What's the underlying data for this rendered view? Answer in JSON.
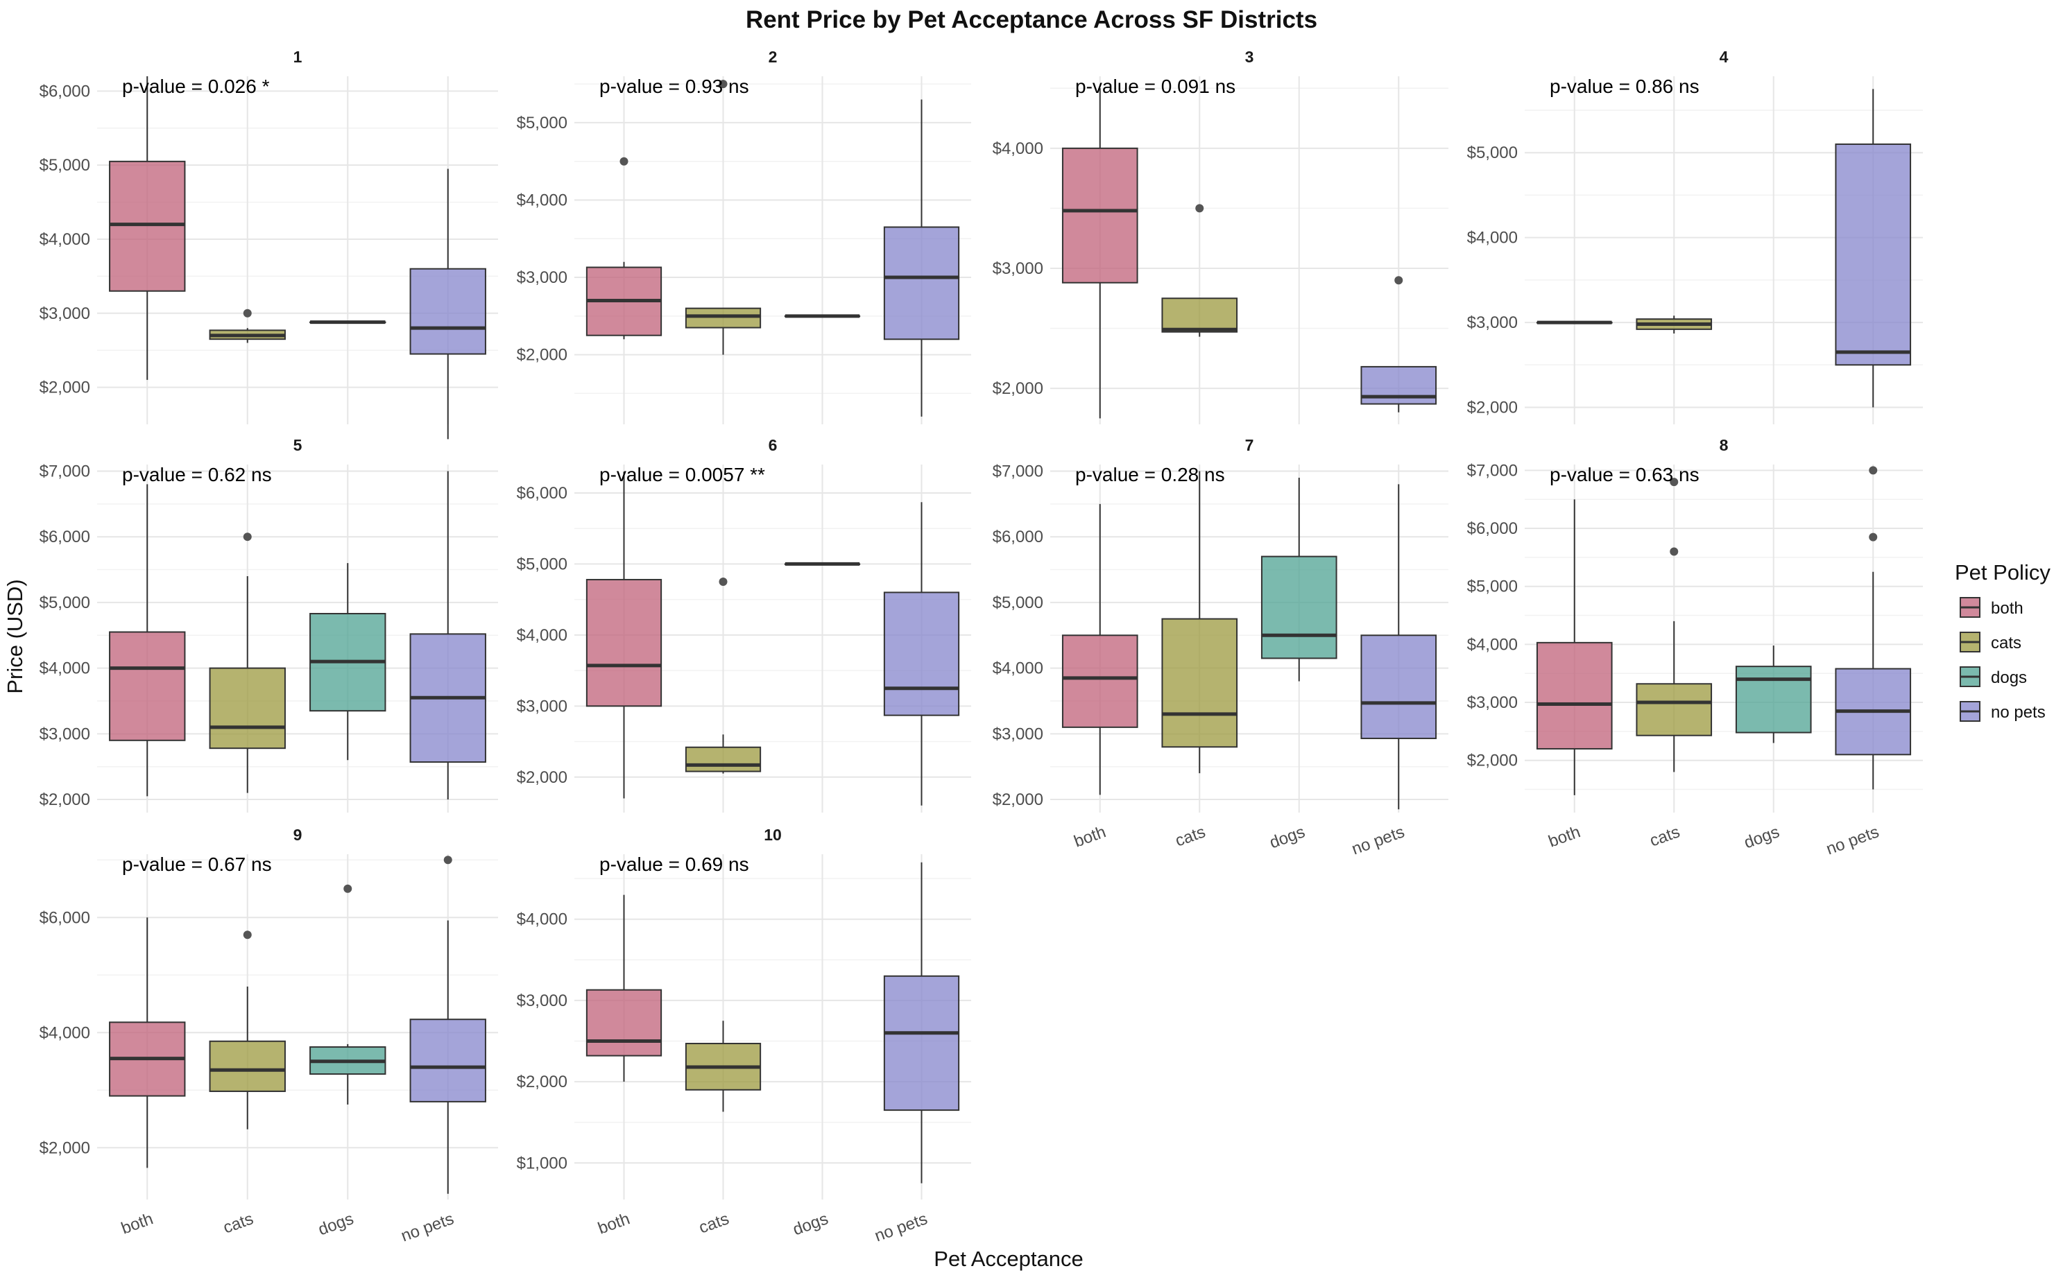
{
  "chart_data": {
    "type": "boxplot",
    "title": "Rent Price by Pet Acceptance Across SF Districts",
    "xlabel": "Pet Acceptance",
    "ylabel": "Price (USD)",
    "categories": [
      "both",
      "cats",
      "dogs",
      "no pets"
    ],
    "legend": {
      "title": "Pet Policy",
      "placement": "right",
      "items": [
        {
          "label": "both",
          "color": "#C0617A"
        },
        {
          "label": "cats",
          "color": "#9C9A3F"
        },
        {
          "label": "dogs",
          "color": "#4FA393"
        },
        {
          "label": "no pets",
          "color": "#8585CC"
        }
      ]
    },
    "grid": true,
    "panels": [
      {
        "label": "1",
        "pvalue": "p-value = 0.026 *",
        "ylim": [
          1500,
          6200
        ],
        "yticks": [
          2000,
          3000,
          4000,
          5000,
          6000
        ],
        "ytick_labels": [
          "$2,000",
          "$3,000",
          "$4,000",
          "$5,000",
          "$6,000"
        ],
        "show_xticks": false,
        "boxes": [
          {
            "category": "both",
            "min": 2100,
            "q1": 3300,
            "median": 4200,
            "q3": 5050,
            "max": 6200,
            "outliers": []
          },
          {
            "category": "cats",
            "min": 2600,
            "q1": 2650,
            "median": 2700,
            "q3": 2770,
            "max": 2800,
            "outliers": [
              3000
            ]
          },
          {
            "category": "dogs",
            "min": 2880,
            "q1": 2880,
            "median": 2880,
            "q3": 2880,
            "max": 2880,
            "outliers": []
          },
          {
            "category": "no pets",
            "min": 1300,
            "q1": 2450,
            "median": 2800,
            "q3": 3600,
            "max": 4950,
            "outliers": []
          }
        ]
      },
      {
        "label": "2",
        "pvalue": "p-value = 0.93 ns",
        "ylim": [
          1100,
          5600
        ],
        "yticks": [
          2000,
          3000,
          4000,
          5000
        ],
        "ytick_labels": [
          "$2,000",
          "$3,000",
          "$4,000",
          "$5,000"
        ],
        "show_xticks": false,
        "boxes": [
          {
            "category": "both",
            "min": 2200,
            "q1": 2250,
            "median": 2700,
            "q3": 3130,
            "max": 3200,
            "outliers": [
              4500
            ]
          },
          {
            "category": "cats",
            "min": 2000,
            "q1": 2350,
            "median": 2500,
            "q3": 2600,
            "max": 2600,
            "outliers": [
              5500
            ]
          },
          {
            "category": "dogs",
            "min": 2500,
            "q1": 2500,
            "median": 2500,
            "q3": 2500,
            "max": 2500,
            "outliers": []
          },
          {
            "category": "no pets",
            "min": 1200,
            "q1": 2200,
            "median": 3000,
            "q3": 3650,
            "max": 5300,
            "outliers": []
          }
        ]
      },
      {
        "label": "3",
        "pvalue": "p-value = 0.091 ns",
        "ylim": [
          1700,
          4600
        ],
        "yticks": [
          2000,
          3000,
          4000
        ],
        "ytick_labels": [
          "$2,000",
          "$3,000",
          "$4,000"
        ],
        "show_xticks": false,
        "boxes": [
          {
            "category": "both",
            "min": 1750,
            "q1": 2880,
            "median": 3480,
            "q3": 4000,
            "max": 4500,
            "outliers": []
          },
          {
            "category": "cats",
            "min": 2430,
            "q1": 2470,
            "median": 2490,
            "q3": 2750,
            "max": 2750,
            "outliers": [
              3500
            ]
          },
          {
            "category": "dogs",
            "min": null,
            "q1": null,
            "median": null,
            "q3": null,
            "max": null,
            "outliers": []
          },
          {
            "category": "no pets",
            "min": 1800,
            "q1": 1870,
            "median": 1930,
            "q3": 2180,
            "max": 2180,
            "outliers": [
              2900
            ]
          }
        ]
      },
      {
        "label": "4",
        "pvalue": "p-value = 0.86 ns",
        "ylim": [
          1800,
          5900
        ],
        "yticks": [
          2000,
          3000,
          4000,
          5000
        ],
        "ytick_labels": [
          "$2,000",
          "$3,000",
          "$4,000",
          "$5,000"
        ],
        "show_xticks": false,
        "boxes": [
          {
            "category": "both",
            "min": 3000,
            "q1": 3000,
            "median": 3000,
            "q3": 3000,
            "max": 3000,
            "outliers": []
          },
          {
            "category": "cats",
            "min": 2870,
            "q1": 2920,
            "median": 2980,
            "q3": 3040,
            "max": 3080,
            "outliers": []
          },
          {
            "category": "dogs",
            "min": null,
            "q1": null,
            "median": null,
            "q3": null,
            "max": null,
            "outliers": []
          },
          {
            "category": "no pets",
            "min": 2000,
            "q1": 2500,
            "median": 2650,
            "q3": 5100,
            "max": 5750,
            "outliers": []
          }
        ]
      },
      {
        "label": "5",
        "pvalue": "p-value = 0.62 ns",
        "ylim": [
          1800,
          7100
        ],
        "yticks": [
          2000,
          3000,
          4000,
          5000,
          6000,
          7000
        ],
        "ytick_labels": [
          "$2,000",
          "$3,000",
          "$4,000",
          "$5,000",
          "$6,000",
          "$7,000"
        ],
        "show_xticks": false,
        "boxes": [
          {
            "category": "both",
            "min": 2050,
            "q1": 2900,
            "median": 4000,
            "q3": 4550,
            "max": 6800,
            "outliers": []
          },
          {
            "category": "cats",
            "min": 2100,
            "q1": 2780,
            "median": 3100,
            "q3": 4000,
            "max": 5400,
            "outliers": [
              6000
            ]
          },
          {
            "category": "dogs",
            "min": 2600,
            "q1": 3350,
            "median": 4100,
            "q3": 4830,
            "max": 5600,
            "outliers": []
          },
          {
            "category": "no pets",
            "min": 2000,
            "q1": 2570,
            "median": 3550,
            "q3": 4520,
            "max": 7000,
            "outliers": []
          }
        ]
      },
      {
        "label": "6",
        "pvalue": "p-value = 0.0057 **",
        "ylim": [
          1500,
          6400
        ],
        "yticks": [
          2000,
          3000,
          4000,
          5000,
          6000
        ],
        "ytick_labels": [
          "$2,000",
          "$3,000",
          "$4,000",
          "$5,000",
          "$6,000"
        ],
        "show_xticks": false,
        "boxes": [
          {
            "category": "both",
            "min": 1700,
            "q1": 3000,
            "median": 3570,
            "q3": 4780,
            "max": 6300,
            "outliers": []
          },
          {
            "category": "cats",
            "min": 2050,
            "q1": 2080,
            "median": 2170,
            "q3": 2420,
            "max": 2600,
            "outliers": [
              4750
            ]
          },
          {
            "category": "dogs",
            "min": 5000,
            "q1": 5000,
            "median": 5000,
            "q3": 5000,
            "max": 5000,
            "outliers": []
          },
          {
            "category": "no pets",
            "min": 1600,
            "q1": 2870,
            "median": 3250,
            "q3": 4600,
            "max": 5870,
            "outliers": []
          }
        ]
      },
      {
        "label": "7",
        "pvalue": "p-value = 0.28 ns",
        "ylim": [
          1800,
          7100
        ],
        "yticks": [
          2000,
          3000,
          4000,
          5000,
          6000,
          7000
        ],
        "ytick_labels": [
          "$2,000",
          "$3,000",
          "$4,000",
          "$5,000",
          "$6,000",
          "$7,000"
        ],
        "show_xticks": true,
        "boxes": [
          {
            "category": "both",
            "min": 2070,
            "q1": 3100,
            "median": 3850,
            "q3": 4500,
            "max": 6500,
            "outliers": []
          },
          {
            "category": "cats",
            "min": 2400,
            "q1": 2800,
            "median": 3300,
            "q3": 4750,
            "max": 7000,
            "outliers": []
          },
          {
            "category": "dogs",
            "min": 3800,
            "q1": 4150,
            "median": 4500,
            "q3": 5700,
            "max": 6900,
            "outliers": []
          },
          {
            "category": "no pets",
            "min": 1850,
            "q1": 2930,
            "median": 3470,
            "q3": 4500,
            "max": 6800,
            "outliers": []
          }
        ]
      },
      {
        "label": "8",
        "pvalue": "p-value = 0.63 ns",
        "ylim": [
          1100,
          7100
        ],
        "yticks": [
          2000,
          3000,
          4000,
          5000,
          6000,
          7000
        ],
        "ytick_labels": [
          "$2,000",
          "$3,000",
          "$4,000",
          "$5,000",
          "$6,000",
          "$7,000"
        ],
        "show_xticks": true,
        "boxes": [
          {
            "category": "both",
            "min": 1400,
            "q1": 2200,
            "median": 2970,
            "q3": 4030,
            "max": 6500,
            "outliers": []
          },
          {
            "category": "cats",
            "min": 1800,
            "q1": 2430,
            "median": 3000,
            "q3": 3320,
            "max": 4400,
            "outliers": [
              5600,
              6800
            ]
          },
          {
            "category": "dogs",
            "min": 2300,
            "q1": 2480,
            "median": 3400,
            "q3": 3620,
            "max": 3980,
            "outliers": []
          },
          {
            "category": "no pets",
            "min": 1500,
            "q1": 2100,
            "median": 2850,
            "q3": 3580,
            "max": 5250,
            "outliers": [
              5850,
              7000
            ]
          }
        ]
      },
      {
        "label": "9",
        "pvalue": "p-value = 0.67 ns",
        "ylim": [
          1100,
          7100
        ],
        "yticks": [
          2000,
          4000,
          6000
        ],
        "ytick_labels": [
          "$2,000",
          "$4,000",
          "$6,000"
        ],
        "show_xticks": true,
        "boxes": [
          {
            "category": "both",
            "min": 1650,
            "q1": 2900,
            "median": 3550,
            "q3": 4180,
            "max": 6000,
            "outliers": []
          },
          {
            "category": "cats",
            "min": 2320,
            "q1": 2980,
            "median": 3350,
            "q3": 3850,
            "max": 4800,
            "outliers": [
              5700
            ]
          },
          {
            "category": "dogs",
            "min": 2750,
            "q1": 3280,
            "median": 3500,
            "q3": 3750,
            "max": 3800,
            "outliers": [
              6500
            ]
          },
          {
            "category": "no pets",
            "min": 1200,
            "q1": 2800,
            "median": 3400,
            "q3": 4230,
            "max": 5950,
            "outliers": [
              7000
            ]
          }
        ]
      },
      {
        "label": "10",
        "pvalue": "p-value = 0.69 ns",
        "ylim": [
          550,
          4800
        ],
        "yticks": [
          1000,
          2000,
          3000,
          4000
        ],
        "ytick_labels": [
          "$1,000",
          "$2,000",
          "$3,000",
          "$4,000"
        ],
        "show_xticks": true,
        "boxes": [
          {
            "category": "both",
            "min": 2000,
            "q1": 2320,
            "median": 2500,
            "q3": 3130,
            "max": 4300,
            "outliers": []
          },
          {
            "category": "cats",
            "min": 1630,
            "q1": 1900,
            "median": 2180,
            "q3": 2470,
            "max": 2750,
            "outliers": []
          },
          {
            "category": "dogs",
            "min": null,
            "q1": null,
            "median": null,
            "q3": null,
            "max": null,
            "outliers": []
          },
          {
            "category": "no pets",
            "min": 750,
            "q1": 1650,
            "median": 2600,
            "q3": 3300,
            "max": 4700,
            "outliers": []
          }
        ]
      }
    ]
  }
}
